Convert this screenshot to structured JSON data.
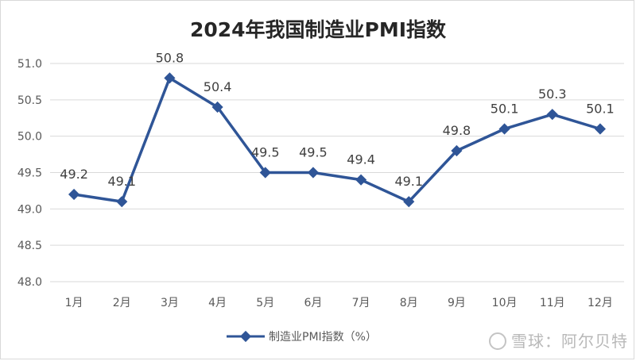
{
  "chart_data": {
    "type": "line",
    "title": "2024年我国制造业PMI指数",
    "categories": [
      "1月",
      "2月",
      "3月",
      "4月",
      "5月",
      "6月",
      "7月",
      "8月",
      "9月",
      "10月",
      "11月",
      "12月"
    ],
    "series": [
      {
        "name": "制造业PMI指数（%）",
        "values": [
          49.2,
          49.1,
          50.8,
          50.4,
          49.5,
          49.5,
          49.4,
          49.1,
          49.8,
          50.1,
          50.3,
          50.1
        ]
      }
    ],
    "data_labels": [
      "49.2",
      "49.1",
      "50.8",
      "50.4",
      "49.5",
      "49.5",
      "49.4",
      "49.1",
      "49.8",
      "50.1",
      "50.3",
      "50.1"
    ],
    "ylim": [
      48.0,
      51.0
    ],
    "yticks": [
      "48.0",
      "48.5",
      "49.0",
      "49.5",
      "50.0",
      "50.5",
      "51.0"
    ],
    "grid": true,
    "legend": "bottom-center",
    "colors": {
      "series": "#2f5597",
      "grid": "#d9d9d9"
    }
  },
  "watermark": {
    "text": "雪球：阿尔贝特"
  }
}
